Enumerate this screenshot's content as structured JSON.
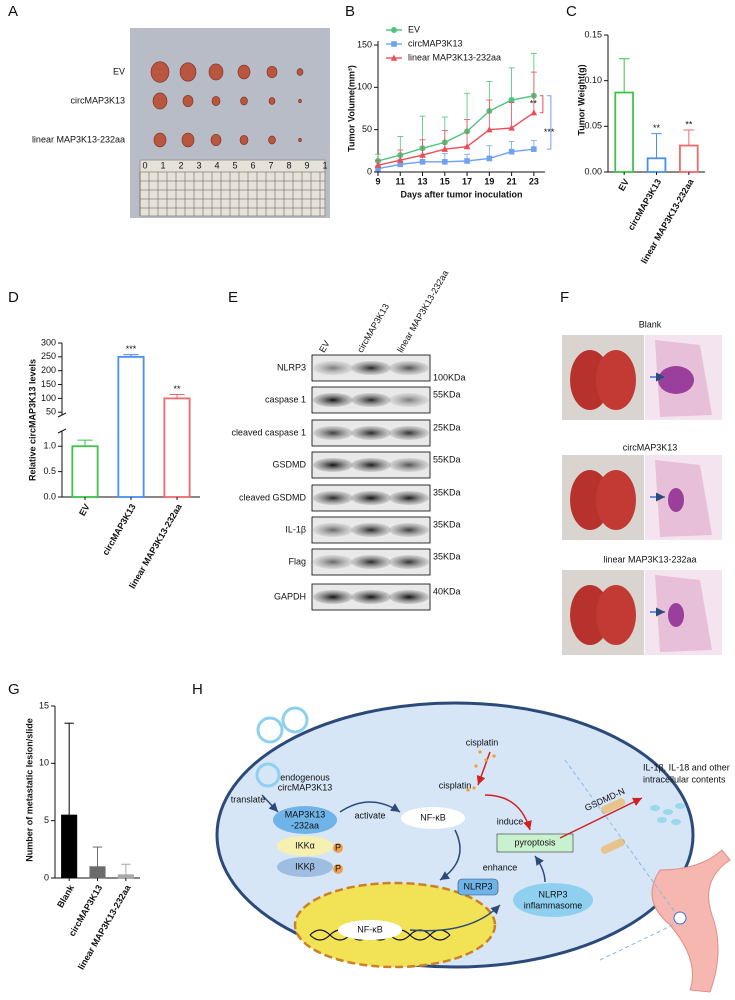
{
  "panel_letters": [
    "A",
    "B",
    "C",
    "D",
    "E",
    "F",
    "G",
    "H"
  ],
  "panel_a": {
    "rows": [
      "EV",
      "circMAP3K13",
      "linear MAP3K13-232aa"
    ],
    "ruler_labels": [
      "0",
      "1",
      "2",
      "3",
      "4",
      "5",
      "6",
      "7",
      "8",
      "9",
      "1"
    ]
  },
  "chart_data": [
    {
      "type": "line",
      "xlabel": "Days after tumor inoculation",
      "ylabel": "Tumor Volume(mm³)",
      "x": [
        9,
        11,
        13,
        15,
        17,
        19,
        21,
        23
      ],
      "xlim": [
        9,
        24
      ],
      "xticks": [
        9,
        11,
        13,
        15,
        17,
        19,
        21,
        23
      ],
      "ylim": [
        0,
        150
      ],
      "yticks": [
        0,
        50,
        100,
        150
      ],
      "series": [
        {
          "name": "EV",
          "color": "#4cc57a",
          "marker": "circle",
          "values": [
            13,
            20,
            28,
            35,
            48,
            72,
            85,
            90
          ],
          "errors": [
            8,
            22,
            38,
            30,
            45,
            35,
            38,
            50
          ]
        },
        {
          "name": "circMAP3K13",
          "color": "#6fa3f2",
          "marker": "square",
          "values": [
            4,
            9,
            12,
            12,
            13,
            16,
            24,
            27
          ],
          "errors": [
            3,
            6,
            8,
            10,
            8,
            15,
            12,
            10
          ]
        },
        {
          "name": "linear MAP3K13-232aa",
          "color": "#ee4d57",
          "marker": "triangle",
          "values": [
            8,
            14,
            20,
            27,
            30,
            50,
            52,
            70
          ],
          "errors": [
            6,
            12,
            18,
            22,
            32,
            35,
            30,
            48
          ]
        }
      ],
      "annotations": [
        "**",
        "***"
      ]
    },
    {
      "type": "bar",
      "ylabel": "Tumor Weight(g)",
      "categories": [
        "EV",
        "circMAP3K13",
        "linear MAP3K13-232aa"
      ],
      "values": [
        0.087,
        0.015,
        0.029
      ],
      "errors": [
        0.037,
        0.027,
        0.017
      ],
      "colors": [
        "#3ec24a",
        "#4a8ef0",
        "#f06a6a"
      ],
      "filled": false,
      "ylim": [
        0,
        0.15
      ],
      "yticks": [
        {
          "value": 0,
          "label": "0.00"
        },
        {
          "value": 0.05,
          "label": "0.05"
        },
        {
          "value": 0.1,
          "label": "0.10"
        },
        {
          "value": 0.15,
          "label": "0.15"
        }
      ],
      "value_annotations": [
        null,
        "**",
        "**"
      ]
    },
    {
      "type": "bar",
      "ylabel": "Relative circMAP3K13 levels",
      "categories": [
        "EV",
        "circMAP3K13",
        "linear MAP3K13-232aa"
      ],
      "values": [
        1.0,
        250,
        100
      ],
      "errors": [
        0.12,
        8,
        14
      ],
      "colors": [
        "#3ec24a",
        "#4a8ef0",
        "#f06a6a"
      ],
      "filled": false,
      "segments": [
        {
          "ylim": [
            0,
            1.3
          ],
          "yticks": [
            {
              "value": 0,
              "label": "0.0"
            },
            {
              "value": 0.5,
              "label": "0.5"
            },
            {
              "value": 1,
              "label": "1.0"
            }
          ]
        },
        {
          "ylim": [
            40,
            300
          ],
          "yticks": [
            50,
            100,
            150,
            200,
            250,
            300
          ]
        }
      ],
      "value_annotations": [
        null,
        "***",
        "**"
      ]
    },
    {
      "type": "bar",
      "ylabel": "Number of metastatic lesion/slide",
      "categories": [
        "Blank",
        "circMAP3K13",
        "linear MAP3K13-232aa"
      ],
      "values": [
        5.5,
        1.0,
        0.3
      ],
      "errors": [
        8.0,
        1.7,
        0.9
      ],
      "colors": [
        "#000000",
        "#6b6b6b",
        "#a8a8a8"
      ],
      "filled": true,
      "ylim": [
        0,
        15
      ],
      "yticks": [
        0,
        5,
        10,
        15
      ]
    }
  ],
  "panel_e": {
    "columns": [
      "EV",
      "circMAP3K13",
      "linear MAP3K13-232aa"
    ],
    "rows": [
      {
        "label": "NLRP3",
        "size": "100KDa"
      },
      {
        "label": "caspase 1",
        "size": "55KDa"
      },
      {
        "label": "cleaved caspase 1",
        "size": "25KDa"
      },
      {
        "label": "GSDMD",
        "size": "55KDa"
      },
      {
        "label": "cleaved GSDMD",
        "size": "35KDa"
      },
      {
        "label": "IL-1β",
        "size": "35KDa"
      },
      {
        "label": "Flag",
        "size": "35KDa"
      },
      {
        "label": "GAPDH",
        "size": "40KDa"
      }
    ]
  },
  "panel_f": {
    "groups": [
      "Blank",
      "circMAP3K13",
      "linear MAP3K13-232aa"
    ]
  },
  "panel_h": {
    "cisplatin_outside": "cisplatin",
    "cisplatin_inside": "cisplatin",
    "circrna": [
      "endogenous",
      "circMAP3K13"
    ],
    "translate": "translate",
    "peptide": [
      "MAP3K13",
      "-232aa"
    ],
    "activate": "activate",
    "nfkb": "NF-κB",
    "nfkb_nucleus": "NF-κB",
    "ikka": "IKKα",
    "ikkb": "IKKβ",
    "phospho": [
      "P",
      "P"
    ],
    "induce": "induce",
    "pyroptosis": "pyroptosis",
    "enhance": "enhance",
    "nlrp3": "NLRP3",
    "inflammasome": [
      "NLRP3",
      "inflammasome"
    ],
    "gsdmd": "GSDMD-N",
    "release": [
      "IL-1β,  IL-18 and other",
      "intracellular contents"
    ]
  }
}
